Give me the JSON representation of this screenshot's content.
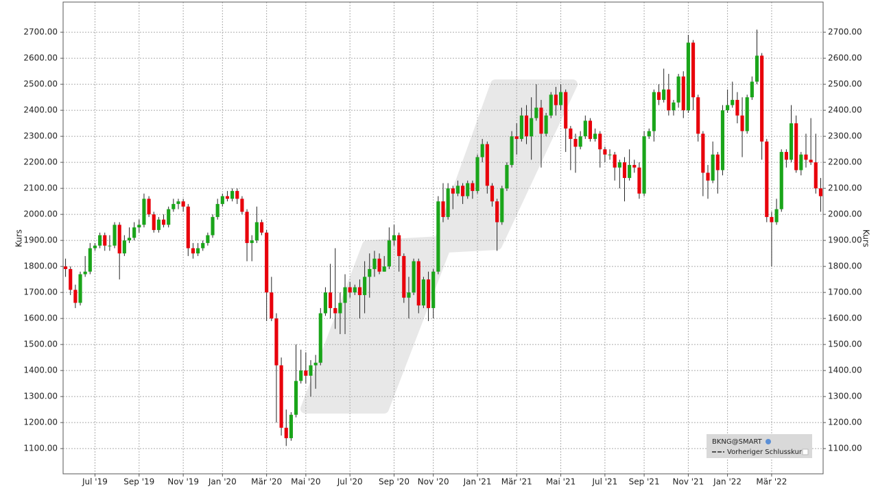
{
  "chart_data": {
    "type": "candlestick",
    "ylabel": "Kurs",
    "y2label": "Kurs",
    "legend": {
      "series": "BKNG@SMART",
      "line": "Vorheriger Schlusskurs"
    },
    "up_color": "#1aa51a",
    "down_color": "#e8000b",
    "grid": true,
    "ylim": [
      1003,
      2816
    ],
    "yticks": [
      {
        "value": 1100,
        "label": "1100.00"
      },
      {
        "value": 1200,
        "label": "1200.00"
      },
      {
        "value": 1300,
        "label": "1300.00"
      },
      {
        "value": 1400,
        "label": "1400.00"
      },
      {
        "value": 1500,
        "label": "1500.00"
      },
      {
        "value": 1600,
        "label": "1600.00"
      },
      {
        "value": 1700,
        "label": "1700.00"
      },
      {
        "value": 1800,
        "label": "1800.00"
      },
      {
        "value": 1900,
        "label": "1900.00"
      },
      {
        "value": 2000,
        "label": "2000.00"
      },
      {
        "value": 2100,
        "label": "2100.00"
      },
      {
        "value": 2200,
        "label": "2200.00"
      },
      {
        "value": 2300,
        "label": "2300.00"
      },
      {
        "value": 2400,
        "label": "2400.00"
      },
      {
        "value": 2500,
        "label": "2500.00"
      },
      {
        "value": 2600,
        "label": "2600.00"
      },
      {
        "value": 2700,
        "label": "2700.00"
      }
    ],
    "categories": [
      null,
      null,
      null,
      null,
      null,
      null,
      "Jul '19",
      null,
      null,
      null,
      null,
      null,
      null,
      null,
      null,
      "Sep '19",
      null,
      null,
      null,
      null,
      null,
      null,
      null,
      null,
      "Nov '19",
      null,
      null,
      null,
      null,
      null,
      null,
      null,
      "Jan '20",
      null,
      null,
      null,
      null,
      null,
      null,
      null,
      null,
      "Mär '20",
      null,
      null,
      null,
      null,
      null,
      null,
      null,
      "Mai '20",
      null,
      null,
      null,
      null,
      null,
      null,
      null,
      null,
      "Jul '20",
      null,
      null,
      null,
      null,
      null,
      null,
      null,
      null,
      "Sep '20",
      null,
      null,
      null,
      null,
      null,
      null,
      null,
      "Nov '20",
      null,
      null,
      null,
      null,
      null,
      null,
      null,
      null,
      "Jan '21",
      null,
      null,
      null,
      null,
      null,
      null,
      null,
      "Mär '21",
      null,
      null,
      null,
      null,
      null,
      null,
      null,
      null,
      "Mai '21",
      null,
      null,
      null,
      null,
      null,
      null,
      null,
      null,
      "Jul '21",
      null,
      null,
      null,
      null,
      null,
      null,
      null,
      "Sep '21",
      null,
      null,
      null,
      null,
      null,
      null,
      null,
      null,
      "Nov '21",
      null,
      null,
      null,
      null,
      null,
      null,
      null,
      "Jan '22",
      null,
      null,
      null,
      null,
      null,
      null,
      null,
      null,
      "Mär '22",
      null,
      null,
      null,
      null,
      null,
      null,
      null,
      null,
      null,
      null
    ],
    "open": [
      1800,
      1790,
      1710,
      1660,
      1770,
      1780,
      1870,
      1880,
      1920,
      1880,
      1880,
      1960,
      1850,
      1900,
      1910,
      1950,
      1960,
      2060,
      2000,
      1940,
      1980,
      1960,
      2020,
      2040,
      2050,
      2030,
      1870,
      1850,
      1870,
      1890,
      1920,
      1990,
      2040,
      2070,
      2060,
      2090,
      2060,
      2010,
      1890,
      1900,
      1970,
      1930,
      1700,
      1600,
      1420,
      1180,
      1140,
      1230,
      1360,
      1400,
      1380,
      1420,
      1430,
      1620,
      1700,
      1640,
      1620,
      1660,
      1720,
      1700,
      1720,
      1690,
      1760,
      1790,
      1830,
      1780,
      1800,
      1900,
      1920,
      1840,
      1680,
      1700,
      1820,
      1650,
      1750,
      1640,
      1780,
      2050,
      1990,
      2100,
      2080,
      2110,
      2070,
      2120,
      2090,
      2220,
      2270,
      2110,
      2050,
      1970,
      2100,
      2190,
      2300,
      2290,
      2380,
      2300,
      2370,
      2410,
      2310,
      2380,
      2460,
      2420,
      2470,
      2330,
      2290,
      2260,
      2300,
      2360,
      2290,
      2310,
      2250,
      2230,
      2230,
      2180,
      2200,
      2140,
      2190,
      2180,
      2080,
      2300,
      2320,
      2470,
      2440,
      2480,
      2400,
      2430,
      2530,
      2400,
      2660,
      2450,
      2310,
      2160,
      2130,
      2230,
      2170,
      2400,
      2420,
      2440,
      2380,
      2320,
      2450,
      2510,
      2610,
      2280,
      1990,
      1970,
      2020,
      2240,
      2210,
      2350,
      2170,
      2230,
      2210,
      2200,
      2100
    ],
    "high": [
      1830,
      1800,
      1730,
      1780,
      1840,
      1890,
      1890,
      1930,
      1930,
      1920,
      1970,
      1970,
      1920,
      1950,
      1970,
      1980,
      2080,
      2070,
      2010,
      1990,
      2000,
      2030,
      2060,
      2060,
      2060,
      2040,
      1890,
      1890,
      1900,
      1930,
      2000,
      2060,
      2080,
      2090,
      2100,
      2100,
      2070,
      2020,
      1920,
      2030,
      1980,
      1940,
      1760,
      1620,
      1450,
      1250,
      1240,
      1500,
      1480,
      1470,
      1440,
      1460,
      1640,
      1720,
      1810,
      1870,
      1700,
      1770,
      1740,
      1730,
      1750,
      1820,
      1850,
      1860,
      1850,
      1840,
      1950,
      1960,
      1930,
      1850,
      1760,
      1830,
      1830,
      1760,
      1780,
      1790,
      2070,
      2120,
      2120,
      2110,
      2130,
      2120,
      2130,
      2130,
      2230,
      2290,
      2280,
      2120,
      2060,
      2110,
      2200,
      2320,
      2350,
      2410,
      2420,
      2450,
      2500,
      2440,
      2390,
      2470,
      2490,
      2500,
      2480,
      2340,
      2310,
      2320,
      2380,
      2370,
      2330,
      2320,
      2260,
      2250,
      2240,
      2210,
      2220,
      2250,
      2210,
      2200,
      2320,
      2330,
      2480,
      2500,
      2560,
      2540,
      2440,
      2540,
      2550,
      2690,
      2670,
      2460,
      2320,
      2190,
      2280,
      2240,
      2420,
      2480,
      2510,
      2470,
      2450,
      2460,
      2530,
      2710,
      2620,
      2290,
      2010,
      2060,
      2250,
      2250,
      2420,
      2380,
      2240,
      2310,
      2370,
      2310,
      2140
    ],
    "low": [
      1760,
      1690,
      1640,
      1650,
      1760,
      1770,
      1860,
      1870,
      1860,
      1860,
      1870,
      1750,
      1840,
      1890,
      1900,
      1930,
      1950,
      1990,
      1930,
      1930,
      1950,
      1950,
      2010,
      2020,
      2010,
      1840,
      1830,
      1840,
      1860,
      1880,
      1910,
      1980,
      2030,
      2050,
      2050,
      2040,
      2000,
      1820,
      1820,
      1890,
      1920,
      1590,
      1590,
      1200,
      1150,
      1110,
      1130,
      1220,
      1350,
      1350,
      1300,
      1330,
      1420,
      1610,
      1600,
      1560,
      1540,
      1540,
      1680,
      1690,
      1600,
      1620,
      1680,
      1760,
      1770,
      1780,
      1790,
      1880,
      1780,
      1660,
      1600,
      1690,
      1620,
      1640,
      1590,
      1600,
      1770,
      1970,
      1980,
      2020,
      2070,
      2040,
      2060,
      2060,
      2080,
      2200,
      2080,
      2030,
      1860,
      1960,
      2090,
      2180,
      2230,
      2280,
      2270,
      2210,
      2360,
      2180,
      2300,
      2370,
      2380,
      2400,
      2240,
      2170,
      2160,
      2250,
      2290,
      2280,
      2280,
      2180,
      2200,
      2210,
      2130,
      2100,
      2050,
      2130,
      2160,
      2060,
      2070,
      2290,
      2280,
      2420,
      2430,
      2380,
      2380,
      2410,
      2370,
      2390,
      2400,
      2280,
      2070,
      2060,
      2120,
      2080,
      2150,
      2390,
      2410,
      2350,
      2220,
      2310,
      2440,
      2500,
      2210,
      1970,
      1800,
      1960,
      2010,
      2180,
      2200,
      2160,
      2150,
      2180,
      2190,
      2080,
      2010
    ],
    "close": [
      1790,
      1710,
      1660,
      1770,
      1780,
      1870,
      1880,
      1920,
      1880,
      1880,
      1960,
      1850,
      1900,
      1910,
      1950,
      1960,
      2060,
      2000,
      1940,
      1980,
      1960,
      2020,
      2040,
      2050,
      2030,
      1870,
      1850,
      1870,
      1890,
      1920,
      1990,
      2040,
      2070,
      2060,
      2090,
      2060,
      2010,
      1890,
      1900,
      1970,
      1930,
      1700,
      1600,
      1420,
      1180,
      1140,
      1230,
      1360,
      1400,
      1380,
      1420,
      1430,
      1620,
      1700,
      1640,
      1620,
      1660,
      1720,
      1700,
      1720,
      1690,
      1760,
      1790,
      1830,
      1780,
      1800,
      1900,
      1920,
      1840,
      1680,
      1700,
      1820,
      1650,
      1750,
      1640,
      1780,
      2050,
      1990,
      2100,
      2080,
      2110,
      2070,
      2120,
      2090,
      2220,
      2270,
      2110,
      2050,
      1970,
      2100,
      2190,
      2300,
      2290,
      2380,
      2300,
      2370,
      2410,
      2310,
      2380,
      2460,
      2420,
      2470,
      2330,
      2290,
      2260,
      2300,
      2360,
      2290,
      2310,
      2250,
      2230,
      2230,
      2180,
      2200,
      2140,
      2190,
      2180,
      2080,
      2300,
      2320,
      2470,
      2440,
      2480,
      2400,
      2430,
      2530,
      2400,
      2660,
      2450,
      2310,
      2160,
      2130,
      2230,
      2170,
      2400,
      2420,
      2440,
      2380,
      2320,
      2450,
      2510,
      2610,
      2280,
      1990,
      1970,
      2020,
      2240,
      2210,
      2350,
      2170,
      2230,
      2210,
      2200,
      2100,
      2070
    ]
  }
}
